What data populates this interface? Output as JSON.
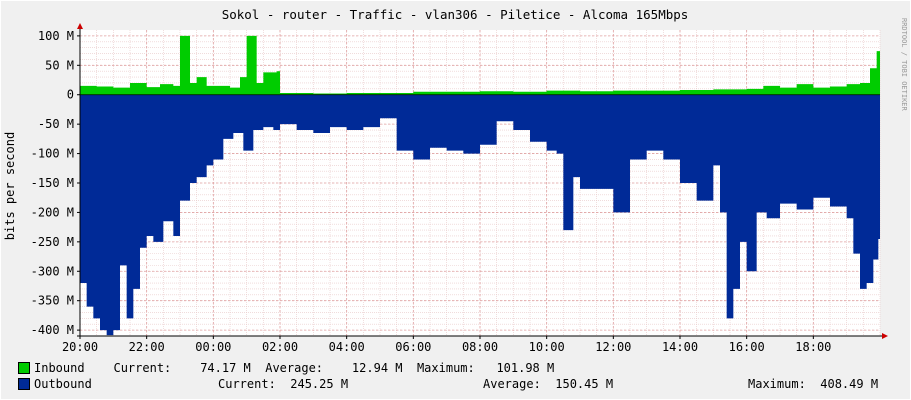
{
  "title": "Sokol - router - Traffic - vlan306 - Piletice - Alcoma 165Mbps",
  "watermark": "RRDTOOL / TOBI OETIKER",
  "colors": {
    "background": "#f0f0f0",
    "plot_bg": "#ffffff",
    "grid_minor": "#e8c8c8",
    "grid_major": "#e0a0a0",
    "inbound": "#00cc00",
    "outbound": "#002a97",
    "axis": "#000000",
    "arrow": "#cc0000"
  },
  "chart_data": {
    "type": "area",
    "title": "Sokol - router - Traffic - vlan306 - Piletice - Alcoma 165Mbps",
    "xlabel": "",
    "ylabel": "bits per second",
    "ylim": [
      -410,
      110
    ],
    "y_unit": "M",
    "grid": true,
    "legend_position": "bottom",
    "y_ticks": [
      {
        "value": 100,
        "label": "100 M"
      },
      {
        "value": 50,
        "label": "50 M"
      },
      {
        "value": 0,
        "label": "0"
      },
      {
        "value": -50,
        "label": "-50 M"
      },
      {
        "value": -100,
        "label": "-100 M"
      },
      {
        "value": -150,
        "label": "-150 M"
      },
      {
        "value": -200,
        "label": "-200 M"
      },
      {
        "value": -250,
        "label": "-250 M"
      },
      {
        "value": -300,
        "label": "-300 M"
      },
      {
        "value": -350,
        "label": "-350 M"
      },
      {
        "value": -400,
        "label": "-400 M"
      }
    ],
    "x_range_hours": [
      20,
      44
    ],
    "x_ticks": [
      {
        "hour": 20,
        "label": "20:00"
      },
      {
        "hour": 22,
        "label": "22:00"
      },
      {
        "hour": 24,
        "label": "00:00"
      },
      {
        "hour": 26,
        "label": "02:00"
      },
      {
        "hour": 28,
        "label": "04:00"
      },
      {
        "hour": 30,
        "label": "06:00"
      },
      {
        "hour": 32,
        "label": "08:00"
      },
      {
        "hour": 34,
        "label": "10:00"
      },
      {
        "hour": 36,
        "label": "12:00"
      },
      {
        "hour": 38,
        "label": "14:00"
      },
      {
        "hour": 40,
        "label": "16:00"
      },
      {
        "hour": 42,
        "label": "18:00"
      }
    ],
    "series": [
      {
        "name": "Inbound",
        "color": "#00cc00",
        "x": [
          20.0,
          20.5,
          21.0,
          21.5,
          22.0,
          22.4,
          22.8,
          23.0,
          23.3,
          23.5,
          23.8,
          24.0,
          24.5,
          24.8,
          25.0,
          25.3,
          25.5,
          25.9,
          26.0,
          27.0,
          28.0,
          29.0,
          30.0,
          31.0,
          32.0,
          33.0,
          34.0,
          35.0,
          36.0,
          37.0,
          38.0,
          39.0,
          40.0,
          40.5,
          41.0,
          41.5,
          42.0,
          42.5,
          43.0,
          43.4,
          43.7,
          43.9
        ],
        "values": [
          15,
          14,
          12,
          20,
          13,
          18,
          15,
          100,
          20,
          30,
          15,
          15,
          12,
          30,
          100,
          20,
          38,
          40,
          3,
          2,
          3,
          3,
          5,
          5,
          6,
          5,
          7,
          6,
          7,
          7,
          8,
          9,
          10,
          15,
          12,
          18,
          12,
          14,
          18,
          20,
          45,
          74.17
        ]
      },
      {
        "name": "Outbound",
        "color": "#002a97",
        "x": [
          20.0,
          20.2,
          20.4,
          20.6,
          20.8,
          21.0,
          21.2,
          21.4,
          21.6,
          21.8,
          22.0,
          22.2,
          22.5,
          22.8,
          23.0,
          23.3,
          23.5,
          23.8,
          24.0,
          24.3,
          24.6,
          24.9,
          25.2,
          25.5,
          25.8,
          26.0,
          26.5,
          27.0,
          27.5,
          28.0,
          28.5,
          29.0,
          29.5,
          30.0,
          30.5,
          31.0,
          31.5,
          32.0,
          32.5,
          33.0,
          33.5,
          34.0,
          34.3,
          34.5,
          34.8,
          35.0,
          35.5,
          36.0,
          36.5,
          37.0,
          37.5,
          38.0,
          38.5,
          39.0,
          39.2,
          39.4,
          39.6,
          39.8,
          40.0,
          40.3,
          40.6,
          41.0,
          41.5,
          42.0,
          42.5,
          43.0,
          43.2,
          43.4,
          43.6,
          43.8,
          43.95
        ],
        "values": [
          -320,
          -360,
          -380,
          -400,
          -408.49,
          -400,
          -290,
          -380,
          -330,
          -260,
          -240,
          -250,
          -215,
          -240,
          -180,
          -150,
          -140,
          -120,
          -110,
          -75,
          -65,
          -95,
          -60,
          -55,
          -60,
          -50,
          -60,
          -65,
          -55,
          -60,
          -55,
          -40,
          -95,
          -110,
          -90,
          -95,
          -100,
          -85,
          -45,
          -60,
          -80,
          -95,
          -100,
          -230,
          -140,
          -160,
          -160,
          -200,
          -110,
          -95,
          -110,
          -150,
          -180,
          -120,
          -200,
          -380,
          -330,
          -250,
          -300,
          -200,
          -210,
          -185,
          -195,
          -175,
          -190,
          -210,
          -270,
          -330,
          -320,
          -280,
          -245.25
        ]
      }
    ]
  },
  "legend": [
    {
      "name": "Inbound",
      "color": "#00cc00",
      "current_label": "Current:",
      "current": "74.17 M",
      "average_label": "Average:",
      "average": "12.94 M",
      "maximum_label": "Maximum:",
      "maximum": "101.98 M"
    },
    {
      "name": "Outbound",
      "color": "#002a97",
      "current_label": "Current:",
      "current": "245.25 M",
      "average_label": "Average:",
      "average": "150.45 M",
      "maximum_label": "Maximum:",
      "maximum": "408.49 M"
    }
  ]
}
